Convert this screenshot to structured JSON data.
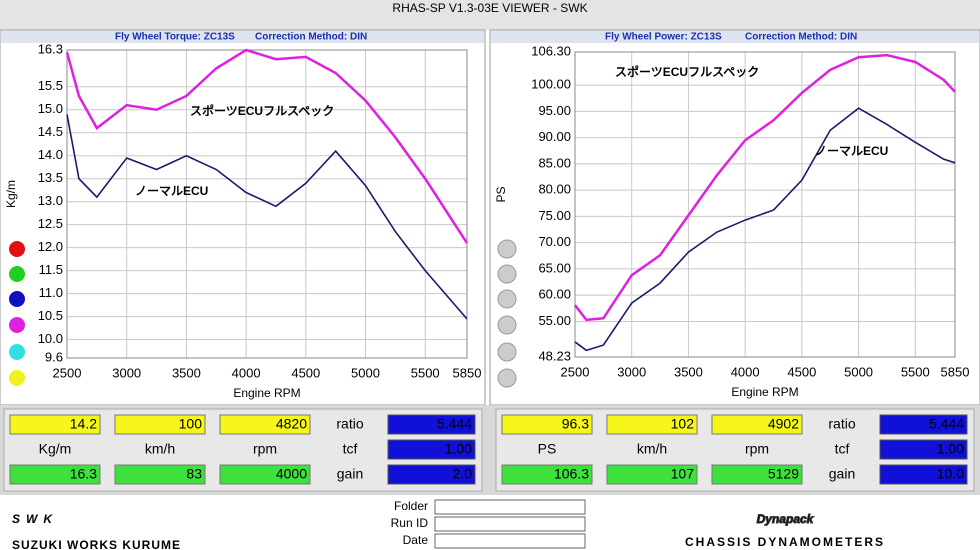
{
  "window_title": "RHAS-SP V1.3-03E VIEWER - SWK",
  "chart_data": [
    {
      "type": "line",
      "title": "Fly Wheel Torque: ZC13S",
      "subtitle": "Correction Method: DIN",
      "x_label": "Engine RPM",
      "y_label": "Kg/m",
      "x": [
        2500,
        2600,
        2750,
        3000,
        3250,
        3500,
        3750,
        4000,
        4250,
        4500,
        4750,
        5000,
        5250,
        5500,
        5750,
        5850
      ],
      "series": [
        {
          "name": "スポーツECUフルスペック",
          "color": "#e020e0",
          "values": [
            16.25,
            15.3,
            14.6,
            15.1,
            15.0,
            15.3,
            15.9,
            16.3,
            16.1,
            16.15,
            15.8,
            15.2,
            14.4,
            13.5,
            12.5,
            12.1
          ]
        },
        {
          "name": "ノーマルECU",
          "color": "#1a1a6e",
          "values": [
            14.9,
            13.5,
            13.1,
            13.95,
            13.7,
            14.0,
            13.7,
            13.2,
            12.9,
            13.4,
            14.1,
            13.35,
            12.35,
            11.5,
            10.75,
            10.45
          ]
        }
      ],
      "xlim": [
        2500,
        5850
      ],
      "xticks": [
        2500,
        3000,
        3500,
        4000,
        4500,
        5000,
        5500,
        5850
      ],
      "ylim": [
        9.6,
        16.3
      ],
      "yticks": [
        16.3,
        15.5,
        {
          "value": 15,
          "label": "15.0"
        },
        14.5,
        {
          "value": 14,
          "label": "14.0"
        },
        13.5,
        {
          "value": 13,
          "label": "13.0"
        },
        12.5,
        {
          "value": 12,
          "label": "12.0"
        },
        11.5,
        {
          "value": 11,
          "label": "11.0"
        },
        10.5,
        {
          "value": 10,
          "label": "10.0"
        },
        9.6
      ],
      "grid": true
    },
    {
      "type": "line",
      "title": "Fly Wheel Power: ZC13S",
      "subtitle": "Correction Method: DIN",
      "x_label": "Engine RPM",
      "y_label": "PS",
      "x": [
        2500,
        2600,
        2750,
        3000,
        3250,
        3500,
        3750,
        4000,
        4250,
        4500,
        4750,
        5000,
        5250,
        5500,
        5750,
        5850
      ],
      "series": [
        {
          "name": "スポーツECUフルスペック",
          "color": "#e020e0",
          "values": [
            58.1,
            55.3,
            55.6,
            63.8,
            67.6,
            75.2,
            82.8,
            89.5,
            93.3,
            98.5,
            102.9,
            105.3,
            105.7,
            104.4,
            101,
            98.7
          ]
        },
        {
          "name": "ノーマルECU",
          "color": "#1a1a6e",
          "values": [
            51.1,
            49.5,
            50.5,
            58.5,
            62.3,
            68.2,
            72,
            74.3,
            76.2,
            81.9,
            91.4,
            95.6,
            92.5,
            89.1,
            85.9,
            85.2
          ]
        }
      ],
      "xlim": [
        2500,
        5850
      ],
      "xticks": [
        2500,
        3000,
        3500,
        4000,
        4500,
        5000,
        5500,
        5850
      ],
      "ylim": [
        48.23,
        106.3
      ],
      "yticks": [
        48.23,
        {
          "value": 55,
          "label": "55.00"
        },
        {
          "value": 60,
          "label": "60.00"
        },
        {
          "value": 65,
          "label": "65.00"
        },
        {
          "value": 70,
          "label": "70.00"
        },
        {
          "value": 75,
          "label": "75.00"
        },
        {
          "value": 80,
          "label": "80.00"
        },
        {
          "value": 85,
          "label": "85.00"
        },
        {
          "value": 90,
          "label": "90.00"
        },
        {
          "value": 95,
          "label": "95.00"
        },
        {
          "value": 100,
          "label": "100.00"
        },
        {
          "value": 106.3,
          "label": "106.30"
        }
      ],
      "grid": true
    }
  ],
  "readouts": [
    {
      "row1": [
        "14.2",
        "100",
        "4820"
      ],
      "ratio_label": "ratio",
      "ratio": "5.444",
      "units": [
        "Kg/m",
        "km/h",
        "rpm"
      ],
      "tcf_label": "tcf",
      "tcf": "1.00",
      "row3": [
        "16.3",
        "83",
        "4000"
      ],
      "gain_label": "gain",
      "gain": "2.0"
    },
    {
      "row1": [
        "96.3",
        "102",
        "4902"
      ],
      "ratio_label": "ratio",
      "ratio": "5.444",
      "units": [
        "PS",
        "km/h",
        "rpm"
      ],
      "tcf_label": "tcf",
      "tcf": "1.00",
      "row3": [
        "106.3",
        "107",
        "5129"
      ],
      "gain_label": "gain",
      "gain": "10.0"
    }
  ],
  "footer": {
    "logo": "SWK",
    "logo_sub": "SUZUKI WORKS KURUME",
    "fields": [
      "Folder",
      "Run ID",
      "Date"
    ],
    "brand": "Dynapack",
    "brand_sub": "CHASSIS DYNAMOMETERS"
  }
}
